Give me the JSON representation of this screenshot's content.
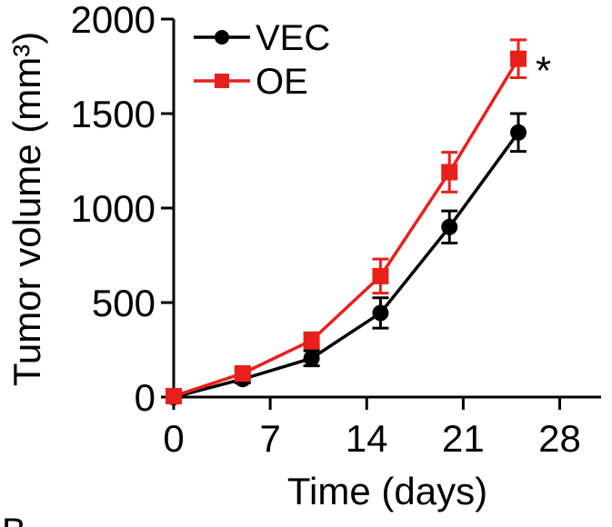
{
  "chart_data": {
    "type": "line",
    "xlabel": "Time (days)",
    "ylabel": "Tumor volume (mm³)",
    "xlim": [
      0,
      31
    ],
    "ylim": [
      0,
      2000
    ],
    "xticks": [
      0,
      7,
      14,
      21,
      28
    ],
    "yticks": [
      0,
      500,
      1000,
      1500,
      2000
    ],
    "xtick_labels": [
      "0",
      "7",
      "14",
      "21",
      "28"
    ],
    "ytick_labels": [
      "0",
      "500",
      "1000",
      "1500",
      "2000"
    ],
    "grid": false,
    "legend_position": "top-left",
    "series": [
      {
        "name": "VEC",
        "color": "#000000",
        "marker": "circle",
        "x": [
          0,
          5,
          10,
          15,
          20,
          25
        ],
        "y": [
          0,
          95,
          205,
          445,
          900,
          1400
        ],
        "err": [
          15,
          20,
          40,
          80,
          85,
          100
        ]
      },
      {
        "name": "OE",
        "color": "#e8201c",
        "marker": "square",
        "x": [
          0,
          5,
          10,
          15,
          20,
          25
        ],
        "y": [
          5,
          125,
          300,
          640,
          1190,
          1790
        ],
        "err": [
          15,
          20,
          40,
          90,
          105,
          100
        ]
      }
    ],
    "annotations": [
      {
        "text": "*",
        "near_series": "OE",
        "x": 25
      }
    ],
    "panel_label": "B"
  }
}
